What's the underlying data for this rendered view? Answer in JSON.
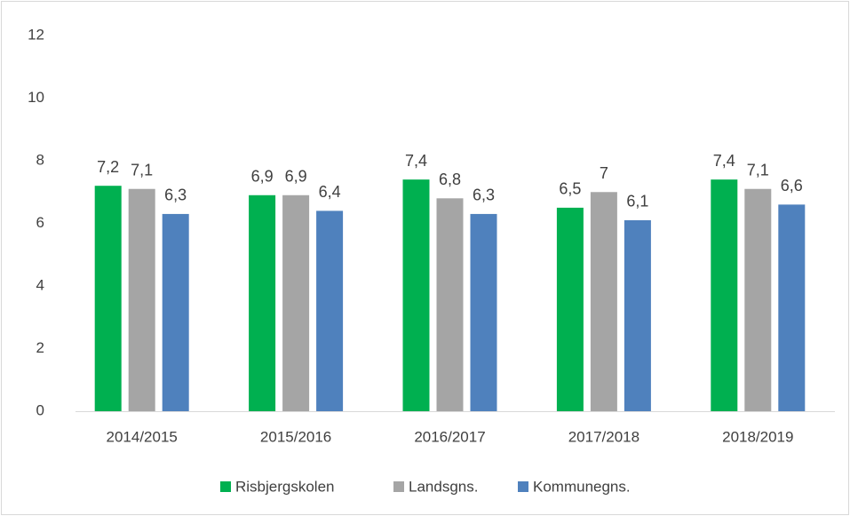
{
  "chart_data": {
    "type": "bar",
    "categories": [
      "2014/2015",
      "2015/2016",
      "2016/2017",
      "2017/2018",
      "2018/2019"
    ],
    "series": [
      {
        "name": "Risbjergskolen",
        "color": "#00b050",
        "values": [
          7.2,
          6.9,
          7.4,
          6.5,
          7.4
        ],
        "value_labels": [
          "7,2",
          "6,9",
          "7,4",
          "6,5",
          "7,4"
        ]
      },
      {
        "name": "Landsgns.",
        "color": "#a5a5a5",
        "values": [
          7.1,
          6.9,
          6.8,
          7,
          7.1
        ],
        "value_labels": [
          "7,1",
          "6,9",
          "6,8",
          "7",
          "7,1"
        ]
      },
      {
        "name": "Kommunegns.",
        "color": "#4f81bd",
        "values": [
          6.3,
          6.4,
          6.3,
          6.1,
          6.6
        ],
        "value_labels": [
          "6,3",
          "6,4",
          "6,3",
          "6,1",
          "6,6"
        ]
      }
    ],
    "ylim": [
      0,
      12
    ],
    "yticks": [
      0,
      2,
      4,
      6,
      8,
      10,
      12
    ],
    "grid": false,
    "legend": "bottom"
  }
}
